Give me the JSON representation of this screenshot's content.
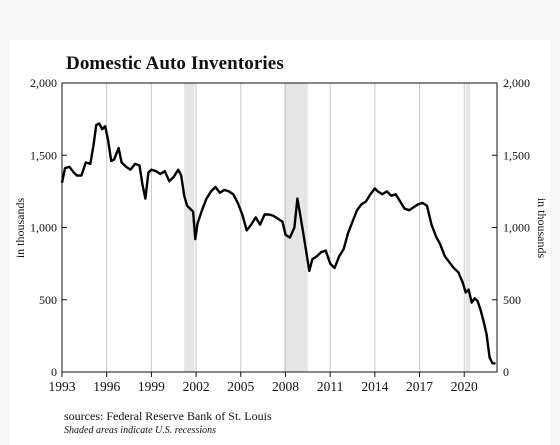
{
  "chart_data": {
    "type": "line",
    "title": "Domestic Auto Inventories",
    "ylabel_left": "in thousands",
    "ylabel_right": "in thousands",
    "ylim": [
      0,
      2000
    ],
    "yticks": [
      0,
      500,
      1000,
      1500,
      2000
    ],
    "ytick_labels": [
      "0",
      "500",
      "1,000",
      "1,500",
      "2,000"
    ],
    "xlim": [
      1993,
      2022.2
    ],
    "xticks": [
      1993,
      1996,
      1999,
      2002,
      2005,
      2008,
      2011,
      2014,
      2017,
      2020
    ],
    "xtick_labels": [
      "1993",
      "1996",
      "1999",
      "2002",
      "2005",
      "2008",
      "2011",
      "2014",
      "2017",
      "2020"
    ],
    "grid": "vertical",
    "recessions": [
      [
        2001.2,
        2001.9
      ],
      [
        2007.9,
        2009.5
      ],
      [
        2020.1,
        2020.4
      ]
    ],
    "series": [
      {
        "x": [
          1993.0,
          1993.2,
          1993.5,
          1993.8,
          1994.0,
          1994.3,
          1994.6,
          1994.9,
          1995.1,
          1995.3,
          1995.5,
          1995.7,
          1995.9,
          1996.1,
          1996.3,
          1996.5,
          1996.8,
          1997.0,
          1997.3,
          1997.6,
          1997.9,
          1998.2,
          1998.4,
          1998.6,
          1998.8,
          1999.0,
          1999.3,
          1999.6,
          1999.9,
          2000.2,
          2000.5,
          2000.8,
          2001.0,
          2001.2,
          2001.4,
          2001.6,
          2001.8,
          2001.95,
          2002.1,
          2002.4,
          2002.7,
          2003.0,
          2003.3,
          2003.6,
          2003.9,
          2004.2,
          2004.5,
          2004.8,
          2005.1,
          2005.4,
          2005.7,
          2006.0,
          2006.3,
          2006.6,
          2006.9,
          2007.2,
          2007.5,
          2007.8,
          2008.0,
          2008.3,
          2008.6,
          2008.8,
          2009.0,
          2009.2,
          2009.4,
          2009.6,
          2009.8,
          2010.1,
          2010.4,
          2010.7,
          2011.0,
          2011.3,
          2011.6,
          2011.9,
          2012.2,
          2012.5,
          2012.8,
          2013.1,
          2013.4,
          2013.7,
          2014.0,
          2014.2,
          2014.5,
          2014.8,
          2015.1,
          2015.4,
          2015.7,
          2016.0,
          2016.3,
          2016.6,
          2016.9,
          2017.2,
          2017.5,
          2017.8,
          2018.1,
          2018.4,
          2018.7,
          2019.0,
          2019.3,
          2019.6,
          2019.9,
          2020.1,
          2020.3,
          2020.5,
          2020.7,
          2020.9,
          2021.1,
          2021.3,
          2021.5,
          2021.7,
          2021.9,
          2022.1
        ],
        "y": [
          1310,
          1410,
          1420,
          1380,
          1360,
          1360,
          1450,
          1440,
          1560,
          1710,
          1720,
          1680,
          1700,
          1600,
          1460,
          1470,
          1550,
          1450,
          1420,
          1400,
          1440,
          1430,
          1300,
          1200,
          1380,
          1400,
          1390,
          1370,
          1390,
          1320,
          1350,
          1400,
          1360,
          1220,
          1150,
          1130,
          1110,
          920,
          1030,
          1120,
          1200,
          1250,
          1280,
          1240,
          1260,
          1250,
          1230,
          1170,
          1090,
          980,
          1020,
          1070,
          1020,
          1090,
          1090,
          1080,
          1060,
          1040,
          950,
          930,
          1000,
          1200,
          1080,
          960,
          830,
          700,
          780,
          800,
          830,
          840,
          750,
          720,
          800,
          850,
          960,
          1040,
          1120,
          1160,
          1180,
          1230,
          1270,
          1250,
          1230,
          1250,
          1220,
          1230,
          1180,
          1130,
          1120,
          1140,
          1160,
          1170,
          1150,
          1020,
          940,
          880,
          800,
          760,
          720,
          690,
          620,
          550,
          570,
          480,
          510,
          490,
          430,
          350,
          260,
          100,
          60,
          60
        ]
      }
    ]
  },
  "footer": {
    "source": "sources: Federal Reserve Bank of St. Louis",
    "note": "Shaded areas indicate U.S. recessions"
  }
}
